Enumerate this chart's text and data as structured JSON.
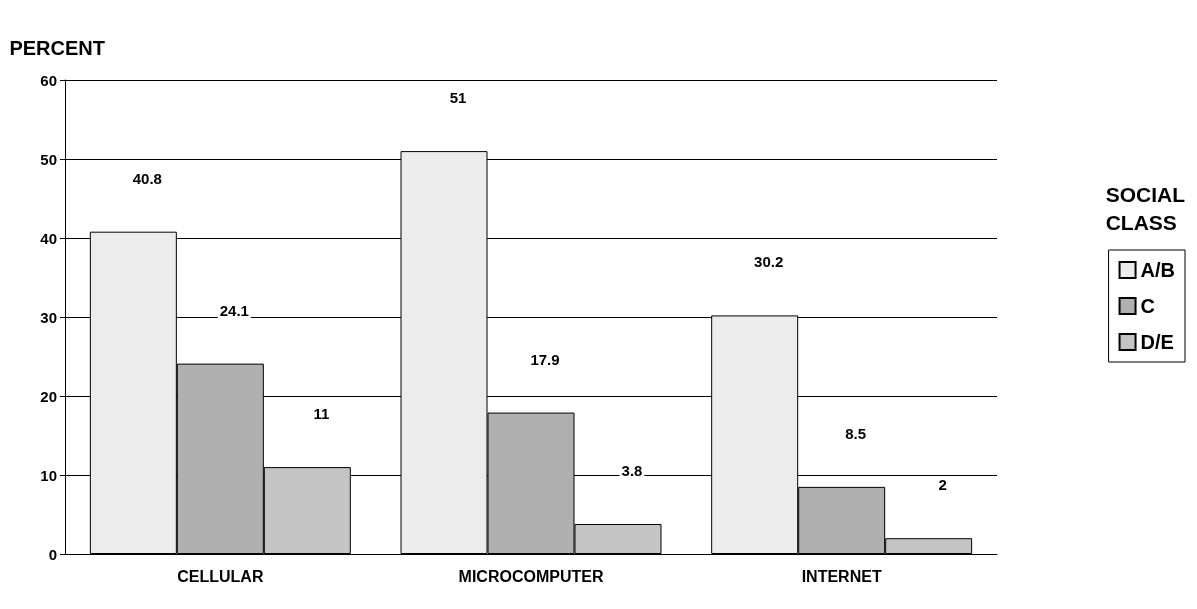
{
  "chart_data": {
    "type": "bar",
    "ylabel": "PERCENT",
    "legend_title": "SOCIAL CLASS",
    "categories": [
      "CELLULAR",
      "MICROCOMPUTER",
      "INTERNET"
    ],
    "series": [
      {
        "name": "A/B",
        "color": "#ececec",
        "values": [
          40.8,
          51,
          30.2
        ]
      },
      {
        "name": "C",
        "color": "#b0b0b0",
        "values": [
          24.1,
          17.9,
          8.5
        ]
      },
      {
        "name": "D/E",
        "color": "#c4c4c4",
        "values": [
          11,
          3.8,
          2
        ]
      }
    ],
    "ylim": [
      0,
      60
    ],
    "yticks": [
      0,
      10,
      20,
      30,
      40,
      50,
      60
    ],
    "grid": "y",
    "legend": "right",
    "data_labels": true
  }
}
